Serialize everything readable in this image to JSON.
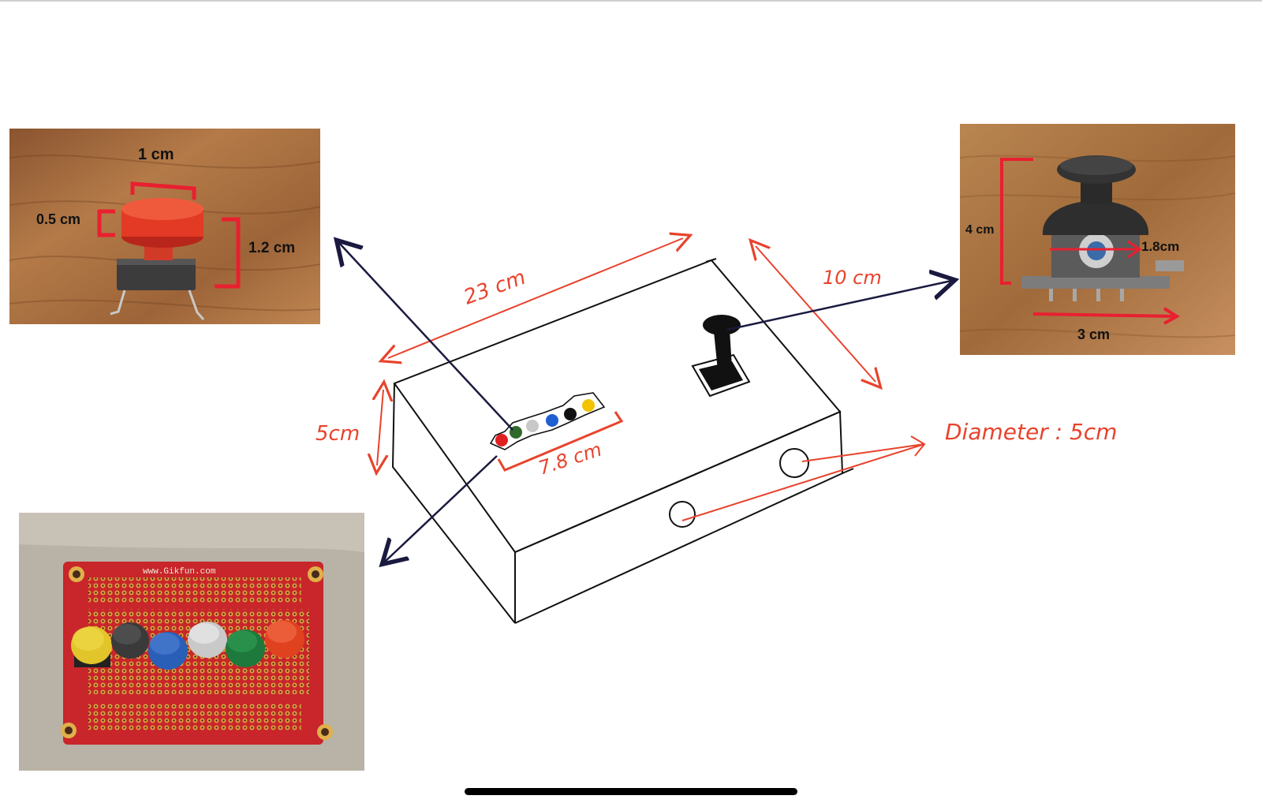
{
  "colors": {
    "annotation": "#e8432c",
    "arrow": "#1a1a40",
    "sketch": "#111111",
    "dimension_bracket": "#e8202f",
    "wood_light": "#b57a45",
    "wood_dark": "#7a4a24",
    "pcb_red": "#c8262a",
    "pcb_bg": "#b7b0a4"
  },
  "sketch": {
    "length_label": "23 cm",
    "depth_label": "10 cm",
    "height_label": "5cm",
    "button_row_label": "7.8 cm",
    "diameter_label": "Diameter : 5cm",
    "button_colors": [
      "#e02020",
      "#2f6a2a",
      "#c8c8c8",
      "#1f5fd1",
      "#111111",
      "#f2c400"
    ]
  },
  "button_photo": {
    "width_label": "1 cm",
    "cap_height_label": "0.5 cm",
    "total_height_label": "1.2 cm"
  },
  "joystick_photo": {
    "height_label": "4 cm",
    "stick_label": "1.8cm",
    "width_label": "3 cm"
  },
  "pcb_photo": {
    "site_label": "www.Gikfun.com",
    "button_colors": [
      "#e2c52a",
      "#3a3a3a",
      "#2a5fb8",
      "#c9c9c9",
      "#1e7a3c",
      "#e0411f"
    ]
  }
}
